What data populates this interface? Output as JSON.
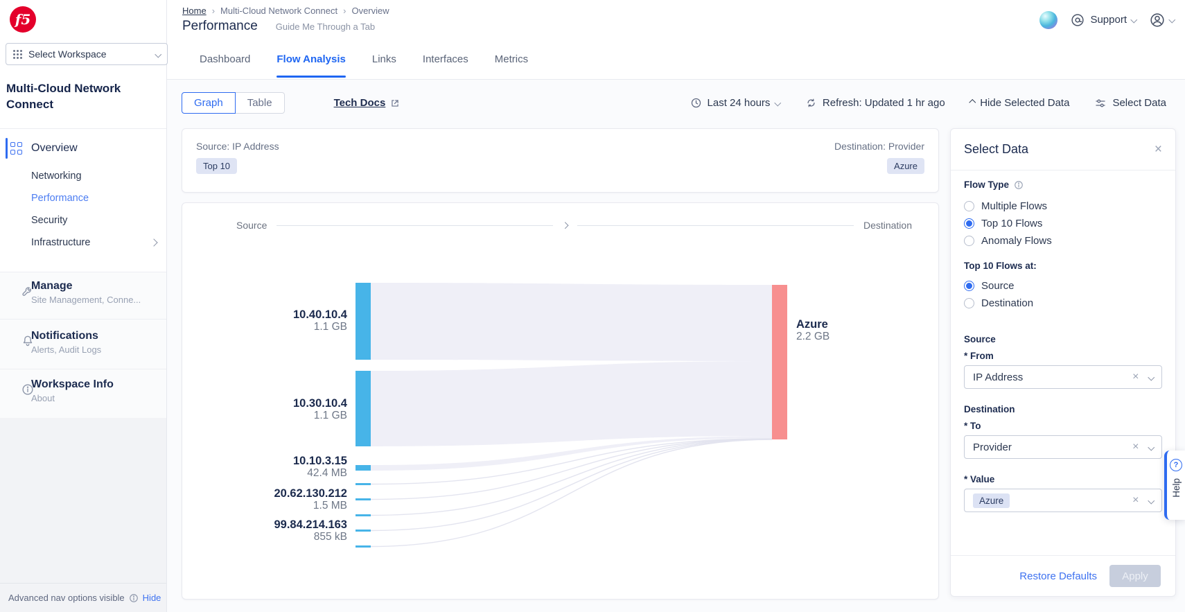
{
  "brand": {
    "logo_text": "f5"
  },
  "workspace_selector": {
    "label": "Select Workspace"
  },
  "sidebar": {
    "workspace_title": "Multi-Cloud Network Connect",
    "overview": {
      "label": "Overview",
      "items": [
        {
          "label": "Networking",
          "active": false
        },
        {
          "label": "Performance",
          "active": true
        },
        {
          "label": "Security",
          "active": false
        },
        {
          "label": "Infrastructure",
          "active": false,
          "has_submenu": true
        }
      ]
    },
    "sections": [
      {
        "label": "Manage",
        "description": "Site Management, Conne...",
        "icon": "wrench-icon"
      },
      {
        "label": "Notifications",
        "description": "Alerts, Audit Logs",
        "icon": "bell-icon"
      },
      {
        "label": "Workspace Info",
        "description": "About",
        "icon": "info-icon"
      }
    ],
    "footer": {
      "text": "Advanced nav options visible",
      "action": "Hide"
    }
  },
  "header": {
    "breadcrumb": [
      {
        "label": "Home"
      },
      {
        "label": "Multi-Cloud Network Connect"
      },
      {
        "label": "Overview"
      }
    ],
    "title": "Performance",
    "subtitle": "Guide Me Through a Tab",
    "support": "Support"
  },
  "tabs": [
    {
      "label": "Dashboard",
      "active": false
    },
    {
      "label": "Flow Analysis",
      "active": true
    },
    {
      "label": "Links",
      "active": false
    },
    {
      "label": "Interfaces",
      "active": false
    },
    {
      "label": "Metrics",
      "active": false
    }
  ],
  "toolbar": {
    "view_options": [
      {
        "label": "Graph",
        "active": true
      },
      {
        "label": "Table",
        "active": false
      }
    ],
    "tech_docs": "Tech Docs",
    "time_range": "Last 24 hours",
    "refresh": "Refresh: Updated 1 hr ago",
    "hide_selected": "Hide Selected Data",
    "select_data": "Select Data"
  },
  "chart_header": {
    "source_label": "Source: IP Address",
    "source_chip": "Top 10",
    "destination_label": "Destination: Provider",
    "destination_chip": "Azure"
  },
  "chart_data": {
    "type": "sankey",
    "axis_left": "Source",
    "axis_right": "Destination",
    "sources": [
      {
        "name": "10.40.10.4",
        "value": "1.1 GB"
      },
      {
        "name": "10.30.10.4",
        "value": "1.1 GB"
      },
      {
        "name": "10.10.3.15",
        "value": "42.4 MB"
      },
      {
        "name": "20.62.130.212",
        "value": "1.5 MB"
      },
      {
        "name": "99.84.214.163",
        "value": "855 kB"
      }
    ],
    "unlabeled_small_flows": 3,
    "destinations": [
      {
        "name": "Azure",
        "value": "2.2 GB"
      }
    ],
    "colors": {
      "source_node": "#47b4e8",
      "destination_node": "#f78f8f",
      "flow": "#ededf6",
      "thin_flow": "#e3e4ef"
    }
  },
  "select_panel": {
    "title": "Select Data",
    "flow_type": {
      "label": "Flow Type",
      "options": [
        {
          "label": "Multiple Flows",
          "selected": false
        },
        {
          "label": "Top 10 Flows",
          "selected": true
        },
        {
          "label": "Anomaly Flows",
          "selected": false
        }
      ]
    },
    "top10_at": {
      "label": "Top 10 Flows at:",
      "options": [
        {
          "label": "Source",
          "selected": true
        },
        {
          "label": "Destination",
          "selected": false
        }
      ]
    },
    "source_group": {
      "label": "Source",
      "field_label": "* From",
      "value": "IP Address"
    },
    "destination_group": {
      "label": "Destination",
      "field_label": "* To",
      "value": "Provider"
    },
    "value_field": {
      "label": "* Value",
      "chip": "Azure"
    },
    "footer": {
      "restore": "Restore Defaults",
      "apply": "Apply"
    }
  },
  "help_tab": {
    "label": "Help"
  }
}
